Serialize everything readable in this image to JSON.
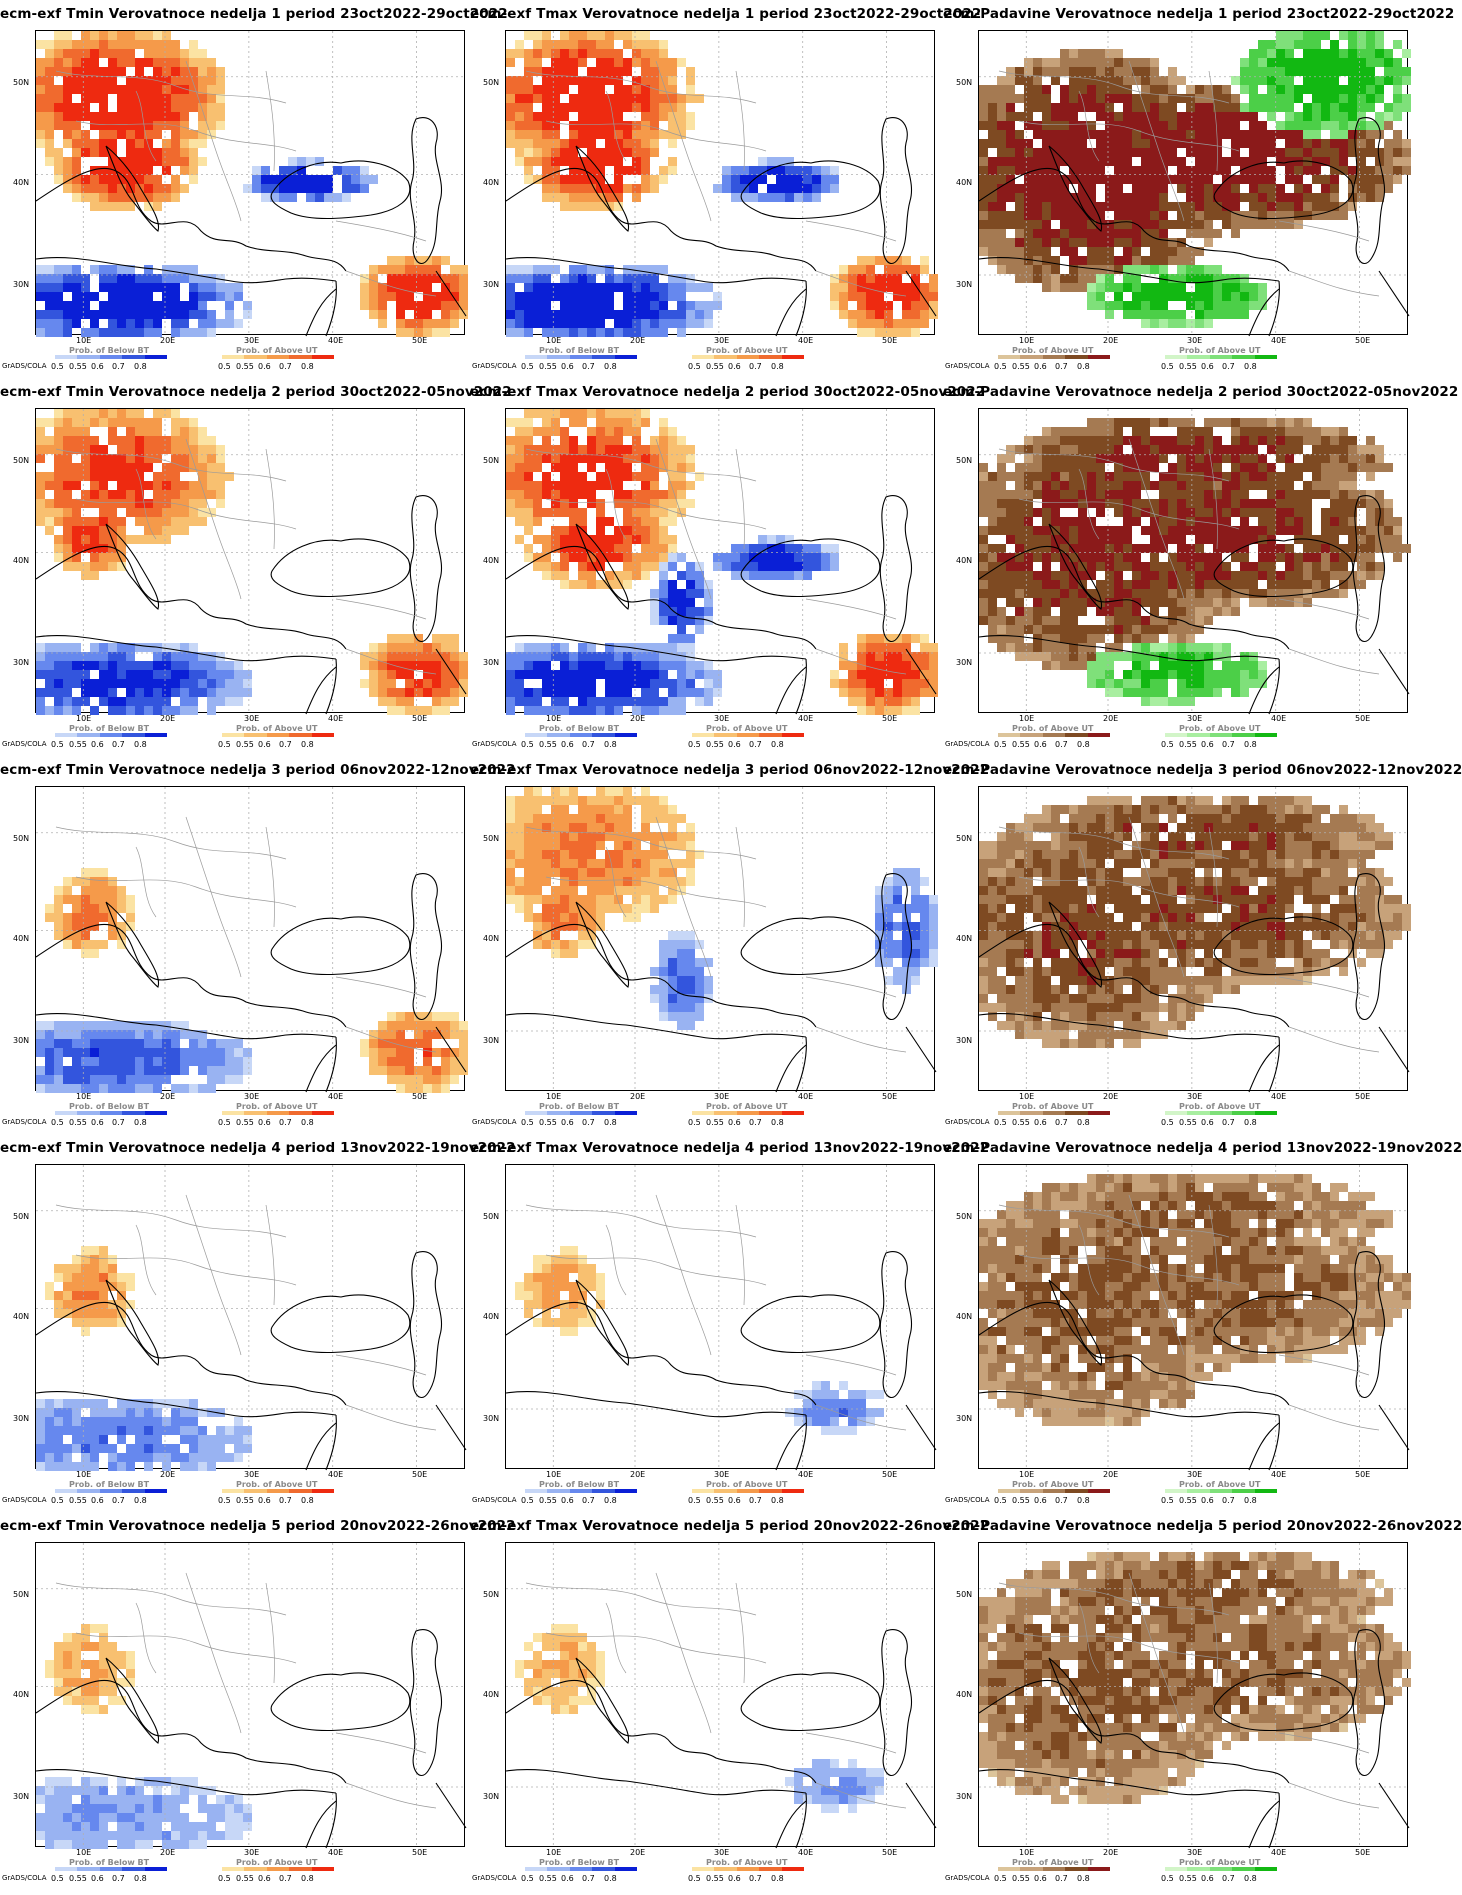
{
  "software_credit": "GrADS/COLA",
  "axes": {
    "lat_labels": [
      "50N",
      "40N",
      "30N"
    ],
    "lon_labels": [
      "10E",
      "20E",
      "30E",
      "40E",
      "50E"
    ]
  },
  "colorbars": {
    "below_title": "Prob. of Below BT",
    "above_title": "Prob. of Above UT",
    "ticks": [
      "0.5",
      "0.55",
      "0.6",
      "0.7",
      "0.8"
    ],
    "blue_scale": [
      "#c7d7f7",
      "#99b3f2",
      "#6688ee",
      "#3355dd",
      "#0a1fd6"
    ],
    "red_scale": [
      "#fbe3a3",
      "#f8c070",
      "#f59a4a",
      "#f06a2e",
      "#ee2a10"
    ],
    "dry_scale": [
      "#dcc49a",
      "#c7a27a",
      "#a57a52",
      "#7e4a22",
      "#8b1a1a"
    ],
    "wet_scale": [
      "#d2f5c8",
      "#a8eea0",
      "#7fe07a",
      "#4ccf48",
      "#12b812"
    ]
  },
  "panels": [
    {
      "title": "ecm-exf Tmin Verovatnoce nedelja 1 period 23oct2022-29oct2022",
      "kind": "temp",
      "warm": [
        "ne-europe",
        "balkans-italy",
        "gulf"
      ],
      "cold": [
        "africa",
        "blacksea-east"
      ],
      "strength": 0.95
    },
    {
      "title": "ecm-exf Tmax Verovatnoce nedelja 1 period 23oct2022-29oct2022",
      "kind": "temp",
      "warm": [
        "ne-europe",
        "balkans-italy",
        "gulf"
      ],
      "cold": [
        "africa",
        "blacksea-east"
      ],
      "strength": 0.95
    },
    {
      "title": "ecm-Padavine Verovatnoce nedelja 1 period 23oct2022-29oct2022",
      "kind": "precip",
      "dry": [
        "west",
        "belt"
      ],
      "wet": [
        "ne-corner",
        "sahara"
      ],
      "strength": 0.95
    },
    {
      "title": "ecm-exf Tmin Verovatnoce nedelja 2 period 30oct2022-05nov2022",
      "kind": "temp",
      "warm": [
        "ne-europe",
        "italy",
        "gulf"
      ],
      "cold": [
        "africa"
      ],
      "strength": 0.8
    },
    {
      "title": "ecm-exf Tmax Verovatnoce nedelja 2 period 30oct2022-05nov2022",
      "kind": "temp",
      "warm": [
        "ne-europe",
        "balkans-italy",
        "gulf"
      ],
      "cold": [
        "africa",
        "blacksea-east",
        "aegean"
      ],
      "strength": 0.85
    },
    {
      "title": "ecm-Padavine Verovatnoce nedelja 2 period 30oct2022-05nov2022",
      "kind": "precip",
      "dry": [
        "west",
        "belt",
        "north"
      ],
      "wet": [
        "sahara"
      ],
      "strength": 0.85
    },
    {
      "title": "ecm-exf Tmin Verovatnoce nedelja 3 period 06nov2022-12nov2022",
      "kind": "temp",
      "warm": [
        "italy",
        "gulf"
      ],
      "cold": [
        "africa"
      ],
      "strength": 0.6
    },
    {
      "title": "ecm-exf Tmax Verovatnoce nedelja 3 period 06nov2022-12nov2022",
      "kind": "temp",
      "warm": [
        "ne-europe",
        "italy"
      ],
      "cold": [
        "aegean",
        "caspian"
      ],
      "strength": 0.55
    },
    {
      "title": "ecm-Padavine Verovatnoce nedelja 3 period 06nov2022-12nov2022",
      "kind": "precip",
      "dry": [
        "west",
        "belt",
        "north"
      ],
      "wet": [],
      "strength": 0.7
    },
    {
      "title": "ecm-exf Tmin Verovatnoce nedelja 4 period 13nov2022-19nov2022",
      "kind": "temp",
      "warm": [
        "italy"
      ],
      "cold": [
        "africa"
      ],
      "strength": 0.45
    },
    {
      "title": "ecm-exf Tmax Verovatnoce nedelja 4 period 13nov2022-19nov2022",
      "kind": "temp",
      "warm": [
        "italy"
      ],
      "cold": [
        "gulf-cold"
      ],
      "strength": 0.4
    },
    {
      "title": "ecm-Padavine Verovatnoce nedelja 4 period 13nov2022-19nov2022",
      "kind": "precip",
      "dry": [
        "west",
        "belt",
        "north"
      ],
      "wet": [],
      "strength": 0.6
    },
    {
      "title": "ecm-exf Tmin Verovatnoce nedelja 5 period 20nov2022-26nov2022",
      "kind": "temp",
      "warm": [
        "italy"
      ],
      "cold": [
        "africa"
      ],
      "strength": 0.3
    },
    {
      "title": "ecm-exf Tmax Verovatnoce nedelja 5 period 20nov2022-26nov2022",
      "kind": "temp",
      "warm": [
        "italy"
      ],
      "cold": [
        "gulf-cold"
      ],
      "strength": 0.3
    },
    {
      "title": "ecm-Padavine Verovatnoce nedelja 5 period 20nov2022-26nov2022",
      "kind": "precip",
      "dry": [
        "west",
        "belt",
        "north"
      ],
      "wet": [],
      "strength": 0.6
    }
  ]
}
